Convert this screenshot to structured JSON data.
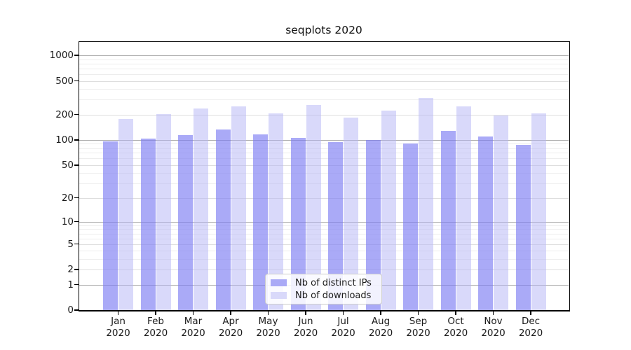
{
  "window": {
    "background": "#ffffff",
    "axis_color": "#000000",
    "text_color": "#1a1a1a"
  },
  "chart_data": {
    "type": "bar",
    "title": "seqplots 2020",
    "categories": [
      "Jan 2020",
      "Feb 2020",
      "Mar 2020",
      "Apr 2020",
      "May 2020",
      "Jun 2020",
      "Jul 2020",
      "Aug 2020",
      "Sep 2020",
      "Oct 2020",
      "Nov 2020",
      "Dec 2020"
    ],
    "series": [
      {
        "name": "Nb of distinct IPs",
        "legend_color": "#aaaaf6",
        "fill": "rgba(124,124,243,0.65)",
        "values": [
          97,
          104,
          114,
          133,
          117,
          106,
          95,
          100,
          91,
          129,
          110,
          87
        ]
      },
      {
        "name": "Nb of downloads",
        "legend_color": "#d9d9fa",
        "fill": "rgba(179,179,245,0.5)",
        "values": [
          178,
          201,
          236,
          251,
          208,
          259,
          184,
          221,
          312,
          248,
          196,
          207
        ]
      }
    ],
    "y_axis": {
      "scale": "log1p",
      "ticks": [
        0,
        1,
        2,
        5,
        10,
        20,
        50,
        100,
        200,
        500,
        1000
      ],
      "minor_ticks": [
        3,
        4,
        6,
        7,
        8,
        9,
        30,
        40,
        60,
        70,
        80,
        90,
        300,
        400,
        600,
        700,
        800,
        900
      ],
      "ylim": [
        0,
        1430
      ]
    },
    "grid": {
      "decade_color": "rgba(0,0,0,0.32)",
      "mid_color": "rgba(0,0,0,0.13)",
      "minor_color": "rgba(0,0,0,0.07)",
      "decade_lines": [
        1,
        10,
        100,
        1000
      ]
    },
    "legend": {
      "position": "lower center",
      "entries": [
        "Nb of distinct IPs",
        "Nb of downloads"
      ]
    }
  }
}
